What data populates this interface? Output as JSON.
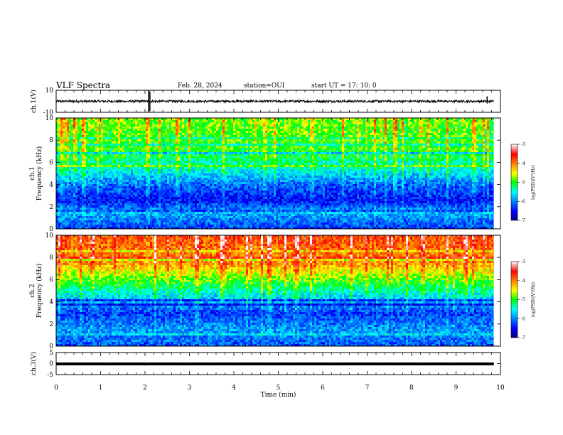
{
  "header": {
    "title": "VLF Spectra",
    "date": "Feb. 28, 2024",
    "station": "station=OUI",
    "start": "start  UT =   17: 10: 0"
  },
  "chart_data": [
    {
      "type": "line",
      "name": "ch1-waveform",
      "ylabel": "ch.1(V)",
      "ylim": [
        -10,
        10
      ],
      "yticks": [
        "10",
        "-10"
      ],
      "xlim": [
        0,
        10
      ],
      "data_end_min": 9.85,
      "baseline": 0,
      "amplitude": 1.0,
      "spikes": [
        {
          "x": 2.08,
          "lo": -10,
          "hi": 10
        },
        {
          "x": 2.11,
          "lo": -9,
          "hi": 9
        },
        {
          "x": 9.7,
          "lo": -2,
          "hi": 4.5
        }
      ]
    },
    {
      "type": "heatmap",
      "name": "ch1-spectrogram",
      "ylabel": "ch.1\nFrequency (kHz)",
      "ylim": [
        0,
        10
      ],
      "yticks": [
        "0",
        "2",
        "4",
        "6",
        "8",
        "10"
      ],
      "xlim": [
        0,
        10
      ],
      "data_end_min": 9.85,
      "colorbar": {
        "label": "log(PSD)(V²/Hz)",
        "range": [
          -7,
          -3
        ],
        "ticks": [
          "-3",
          "-4",
          "-5",
          "-6",
          "-7"
        ]
      },
      "profile": [
        {
          "f": 0,
          "v": -6.3
        },
        {
          "f": 1.5,
          "v": -5.8
        },
        {
          "f": 2.5,
          "v": -6.5
        },
        {
          "f": 4.0,
          "v": -6.1
        },
        {
          "f": 5.5,
          "v": -5.4
        },
        {
          "f": 7.0,
          "v": -5.0
        },
        {
          "f": 10.0,
          "v": -4.8
        }
      ]
    },
    {
      "type": "heatmap",
      "name": "ch2-spectrogram",
      "ylabel": "ch.2\nFrequency (kHz)",
      "ylim": [
        0,
        10
      ],
      "yticks": [
        "0",
        "2",
        "4",
        "6",
        "8",
        "10"
      ],
      "xlim": [
        0,
        10
      ],
      "data_end_min": 9.85,
      "colorbar": {
        "label": "log(PSD)(V²/Hz)",
        "range": [
          -7,
          -3
        ],
        "ticks": [
          "-3",
          "-4",
          "-5",
          "-6",
          "-7"
        ]
      },
      "profile": [
        {
          "f": 0,
          "v": -6.2
        },
        {
          "f": 1.5,
          "v": -5.9
        },
        {
          "f": 3.0,
          "v": -6.3
        },
        {
          "f": 4.5,
          "v": -5.6
        },
        {
          "f": 6.0,
          "v": -4.9
        },
        {
          "f": 7.5,
          "v": -4.1
        },
        {
          "f": 10.0,
          "v": -3.8
        }
      ]
    },
    {
      "type": "line",
      "name": "ch3-waveform",
      "ylabel": "ch.3(V)",
      "ylim": [
        -5,
        5
      ],
      "yticks": [
        "5",
        "0",
        "-5"
      ],
      "xlim": [
        0,
        10
      ],
      "data_end_min": 9.85,
      "baseline": -0.15,
      "amplitude": 0.35
    }
  ],
  "xaxis": {
    "label": "Time  (min)",
    "ticks": [
      "0",
      "1",
      "2",
      "3",
      "4",
      "5",
      "6",
      "7",
      "8",
      "9",
      "10"
    ]
  }
}
